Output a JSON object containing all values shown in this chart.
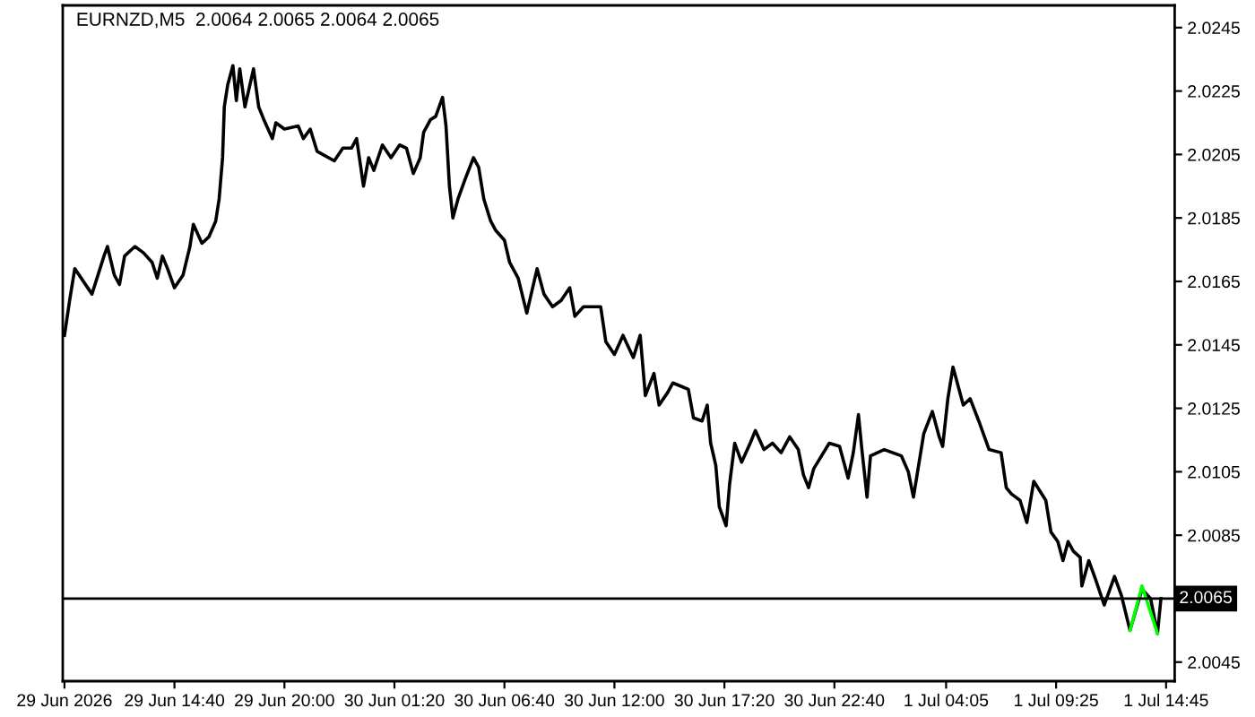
{
  "chart_data": {
    "type": "line",
    "title": "EURNZD,M5  2.0064 2.0065 2.0064 2.0065",
    "series": [
      {
        "color": "#000000",
        "x": [
          "2026-06-29T09:20",
          "2026-06-29T09:35",
          "2026-06-29T09:50",
          "2026-06-29T10:40",
          "2026-06-29T11:15",
          "2026-06-29T11:25",
          "2026-06-29T11:45",
          "2026-06-29T12:00",
          "2026-06-29T12:15",
          "2026-06-29T12:45",
          "2026-06-29T13:10",
          "2026-06-29T13:35",
          "2026-06-29T13:50",
          "2026-06-29T14:05",
          "2026-06-29T14:20",
          "2026-06-29T14:40",
          "2026-06-29T15:05",
          "2026-06-29T15:25",
          "2026-06-29T15:35",
          "2026-06-29T16:00",
          "2026-06-29T16:20",
          "2026-06-29T16:40",
          "2026-06-29T16:50",
          "2026-06-29T17:00",
          "2026-06-29T17:05",
          "2026-06-29T17:15",
          "2026-06-29T17:30",
          "2026-06-29T17:40",
          "2026-06-29T17:50",
          "2026-06-29T18:05",
          "2026-06-29T18:30",
          "2026-06-29T18:45",
          "2026-06-29T19:00",
          "2026-06-29T19:25",
          "2026-06-29T19:35",
          "2026-06-29T20:00",
          "2026-06-29T20:40",
          "2026-06-29T20:55",
          "2026-06-29T21:15",
          "2026-06-29T21:35",
          "2026-06-29T22:25",
          "2026-06-29T22:50",
          "2026-06-29T23:15",
          "2026-06-29T23:30",
          "2026-06-29T23:50",
          "2026-06-30T00:05",
          "2026-06-30T00:20",
          "2026-06-30T00:45",
          "2026-06-30T01:10",
          "2026-06-30T01:35",
          "2026-06-30T01:55",
          "2026-06-30T02:15",
          "2026-06-30T02:35",
          "2026-06-30T02:45",
          "2026-06-30T03:05",
          "2026-06-30T03:20",
          "2026-06-30T03:40",
          "2026-06-30T03:50",
          "2026-06-30T04:00",
          "2026-06-30T04:10",
          "2026-06-30T04:25",
          "2026-06-30T04:45",
          "2026-06-30T05:10",
          "2026-06-30T05:25",
          "2026-06-30T05:40",
          "2026-06-30T06:00",
          "2026-06-30T06:15",
          "2026-06-30T06:40",
          "2026-06-30T06:55",
          "2026-06-30T07:20",
          "2026-06-30T07:45",
          "2026-06-30T08:15",
          "2026-06-30T08:35",
          "2026-06-30T09:00",
          "2026-06-30T09:25",
          "2026-06-30T09:50",
          "2026-06-30T10:05",
          "2026-06-30T10:30",
          "2026-06-30T11:20",
          "2026-06-30T11:35",
          "2026-06-30T12:00",
          "2026-06-30T12:25",
          "2026-06-30T12:55",
          "2026-06-30T13:15",
          "2026-06-30T13:30",
          "2026-06-30T13:55",
          "2026-06-30T14:10",
          "2026-06-30T14:35",
          "2026-06-30T14:50",
          "2026-06-30T15:35",
          "2026-06-30T15:50",
          "2026-06-30T16:15",
          "2026-06-30T16:30",
          "2026-06-30T16:40",
          "2026-06-30T16:55",
          "2026-06-30T17:05",
          "2026-06-30T17:25",
          "2026-06-30T17:35",
          "2026-06-30T17:50",
          "2026-06-30T18:10",
          "2026-06-30T18:35",
          "2026-06-30T18:50",
          "2026-06-30T19:15",
          "2026-06-30T19:40",
          "2026-06-30T20:05",
          "2026-06-30T20:30",
          "2026-06-30T20:55",
          "2026-06-30T21:10",
          "2026-06-30T21:25",
          "2026-06-30T21:40",
          "2026-06-30T22:25",
          "2026-06-30T22:55",
          "2026-06-30T23:20",
          "2026-06-30T23:35",
          "2026-06-30T23:50",
          "2026-07-01T00:00",
          "2026-07-01T00:15",
          "2026-07-01T00:25",
          "2026-07-01T01:05",
          "2026-07-01T01:55",
          "2026-07-01T02:15",
          "2026-07-01T02:30",
          "2026-07-01T02:45",
          "2026-07-01T03:00",
          "2026-07-01T03:25",
          "2026-07-01T03:45",
          "2026-07-01T03:55",
          "2026-07-01T04:10",
          "2026-07-01T04:25",
          "2026-07-01T04:40",
          "2026-07-01T04:55",
          "2026-07-01T05:15",
          "2026-07-01T05:40",
          "2026-07-01T06:10",
          "2026-07-01T06:45",
          "2026-07-01T07:00",
          "2026-07-01T07:15",
          "2026-07-01T07:40",
          "2026-07-01T08:00",
          "2026-07-01T08:20",
          "2026-07-01T08:55",
          "2026-07-01T09:10",
          "2026-07-01T09:30",
          "2026-07-01T09:45",
          "2026-07-01T10:00",
          "2026-07-01T10:15",
          "2026-07-01T10:35",
          "2026-07-01T10:40",
          "2026-07-01T11:00",
          "2026-07-01T11:20",
          "2026-07-01T11:45",
          "2026-07-01T12:15",
          "2026-07-01T12:35",
          "2026-07-01T13:00",
          "2026-07-01T13:35",
          "2026-07-01T14:00",
          "2026-07-01T14:20",
          "2026-07-01T14:30"
        ],
        "values": [
          2.0148,
          2.0159,
          2.0169,
          2.0161,
          2.0173,
          2.0176,
          2.0167,
          2.0164,
          2.0173,
          2.0176,
          2.0174,
          2.0171,
          2.0166,
          2.0173,
          2.0169,
          2.0163,
          2.0167,
          2.0176,
          2.0183,
          2.0177,
          2.0179,
          2.0184,
          2.0191,
          2.0204,
          2.022,
          2.0227,
          2.0233,
          2.0222,
          2.0232,
          2.022,
          2.0232,
          2.022,
          2.0216,
          2.021,
          2.0215,
          2.0213,
          2.0214,
          2.021,
          2.0213,
          2.0206,
          2.0203,
          2.0207,
          2.0207,
          2.021,
          2.0195,
          2.0204,
          2.02,
          2.0208,
          2.0204,
          2.0208,
          2.0207,
          2.0199,
          2.0204,
          2.0212,
          2.0216,
          2.0217,
          2.0223,
          2.0214,
          2.0195,
          2.0185,
          2.0191,
          2.0197,
          2.0204,
          2.0201,
          2.0191,
          2.0184,
          2.0181,
          2.0178,
          2.0171,
          2.0166,
          2.0155,
          2.0169,
          2.0161,
          2.0157,
          2.0159,
          2.0163,
          2.0154,
          2.0157,
          2.0157,
          2.0146,
          2.0142,
          2.0148,
          2.0141,
          2.0148,
          2.0129,
          2.0136,
          2.0126,
          2.013,
          2.0133,
          2.0131,
          2.0122,
          2.0121,
          2.0126,
          2.0114,
          2.0107,
          2.0094,
          2.0088,
          2.0101,
          2.0114,
          2.0108,
          2.0114,
          2.0118,
          2.0112,
          2.0114,
          2.0111,
          2.0116,
          2.0112,
          2.0104,
          2.01,
          2.0106,
          2.0114,
          2.0113,
          2.0103,
          2.0111,
          2.0123,
          2.0112,
          2.0097,
          2.011,
          2.0112,
          2.011,
          2.0105,
          2.0097,
          2.0107,
          2.0117,
          2.0124,
          2.0116,
          2.0113,
          2.0128,
          2.0138,
          2.0132,
          2.0126,
          2.0128,
          2.0121,
          2.0112,
          2.0111,
          2.01,
          2.0098,
          2.0096,
          2.0089,
          2.0102,
          2.0096,
          2.0086,
          2.0083,
          2.0077,
          2.0083,
          2.008,
          2.0078,
          2.0069,
          2.0077,
          2.0071,
          2.0063,
          2.0072,
          2.0066,
          2.0055,
          2.0068,
          2.0065,
          2.0054,
          2.0065
        ]
      },
      {
        "color": "#00ff00",
        "x": [
          "2026-07-01T13:00",
          "2026-07-01T13:35",
          "2026-07-01T14:20"
        ],
        "values": [
          2.0055,
          2.0069,
          2.0054
        ]
      }
    ],
    "xlim": [
      "2026-06-29T09:15",
      "2026-07-01T15:10"
    ],
    "xticks": [
      {
        "value": "2026-06-29T09:20",
        "label": "29 Jun 2026"
      },
      {
        "value": "2026-06-29T14:40",
        "label": "29 Jun 14:40"
      },
      {
        "value": "2026-06-29T20:00",
        "label": "29 Jun 20:00"
      },
      {
        "value": "2026-06-30T01:20",
        "label": "30 Jun 01:20"
      },
      {
        "value": "2026-06-30T06:40",
        "label": "30 Jun 06:40"
      },
      {
        "value": "2026-06-30T12:00",
        "label": "30 Jun 12:00"
      },
      {
        "value": "2026-06-30T17:20",
        "label": "30 Jun 17:20"
      },
      {
        "value": "2026-06-30T22:40",
        "label": "30 Jun 22:40"
      },
      {
        "value": "2026-07-01T04:05",
        "label": "1 Jul 04:05"
      },
      {
        "value": "2026-07-01T09:25",
        "label": "1 Jul 09:25"
      },
      {
        "value": "2026-07-01T14:45",
        "label": "1 Jul 14:45"
      }
    ],
    "ylim": [
      2.0039,
      2.0252
    ],
    "yticks": [
      2.0045,
      2.0085,
      2.0105,
      2.0125,
      2.0145,
      2.0165,
      2.0185,
      2.0205,
      2.0225,
      2.0245
    ],
    "ref_lines": [
      {
        "axis": "y",
        "value": 2.0065,
        "label": "2.0065",
        "color": "#000000"
      }
    ]
  }
}
